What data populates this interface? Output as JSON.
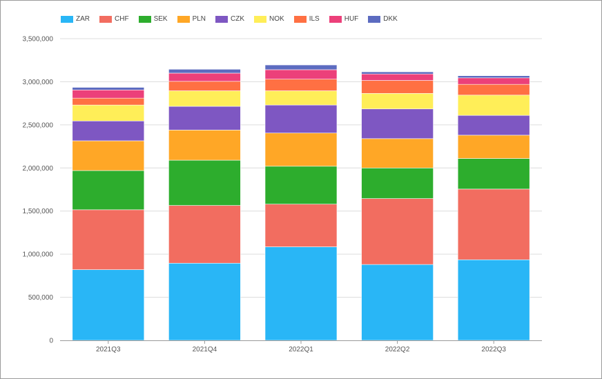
{
  "chart_data": {
    "type": "bar",
    "stacked": true,
    "title": "",
    "xlabel": "",
    "ylabel": "",
    "ylim": [
      0,
      3500000
    ],
    "yticks": [
      0,
      500000,
      1000000,
      1500000,
      2000000,
      2500000,
      3000000,
      3500000
    ],
    "ytick_labels": [
      "0",
      "500,000",
      "1,000,000",
      "1,500,000",
      "2,000,000",
      "2,500,000",
      "3,000,000",
      "3,500,000"
    ],
    "grid": true,
    "legend_position": "top-left",
    "categories": [
      "2021Q3",
      "2021Q4",
      "2022Q1",
      "2022Q2",
      "2022Q3"
    ],
    "series": [
      {
        "name": "ZAR",
        "color": "#29B6F6",
        "values": [
          820000,
          895000,
          1085000,
          880000,
          935000
        ]
      },
      {
        "name": "CHF",
        "color": "#F26D60",
        "values": [
          695000,
          670000,
          495000,
          765000,
          820000
        ]
      },
      {
        "name": "SEK",
        "color": "#2DAD2D",
        "values": [
          455000,
          525000,
          440000,
          355000,
          355000
        ]
      },
      {
        "name": "PLN",
        "color": "#FFA726",
        "values": [
          345000,
          350000,
          385000,
          340000,
          270000
        ]
      },
      {
        "name": "CZK",
        "color": "#7E57C2",
        "values": [
          230000,
          275000,
          325000,
          345000,
          230000
        ]
      },
      {
        "name": "NOK",
        "color": "#FFEE58",
        "values": [
          185000,
          180000,
          165000,
          180000,
          235000
        ]
      },
      {
        "name": "ILS",
        "color": "#FF7043",
        "values": [
          80000,
          110000,
          135000,
          150000,
          125000
        ]
      },
      {
        "name": "HUF",
        "color": "#EC407A",
        "values": [
          95000,
          95000,
          110000,
          75000,
          75000
        ]
      },
      {
        "name": "DKK",
        "color": "#5C6BC0",
        "values": [
          30000,
          45000,
          55000,
          25000,
          25000
        ]
      }
    ]
  }
}
